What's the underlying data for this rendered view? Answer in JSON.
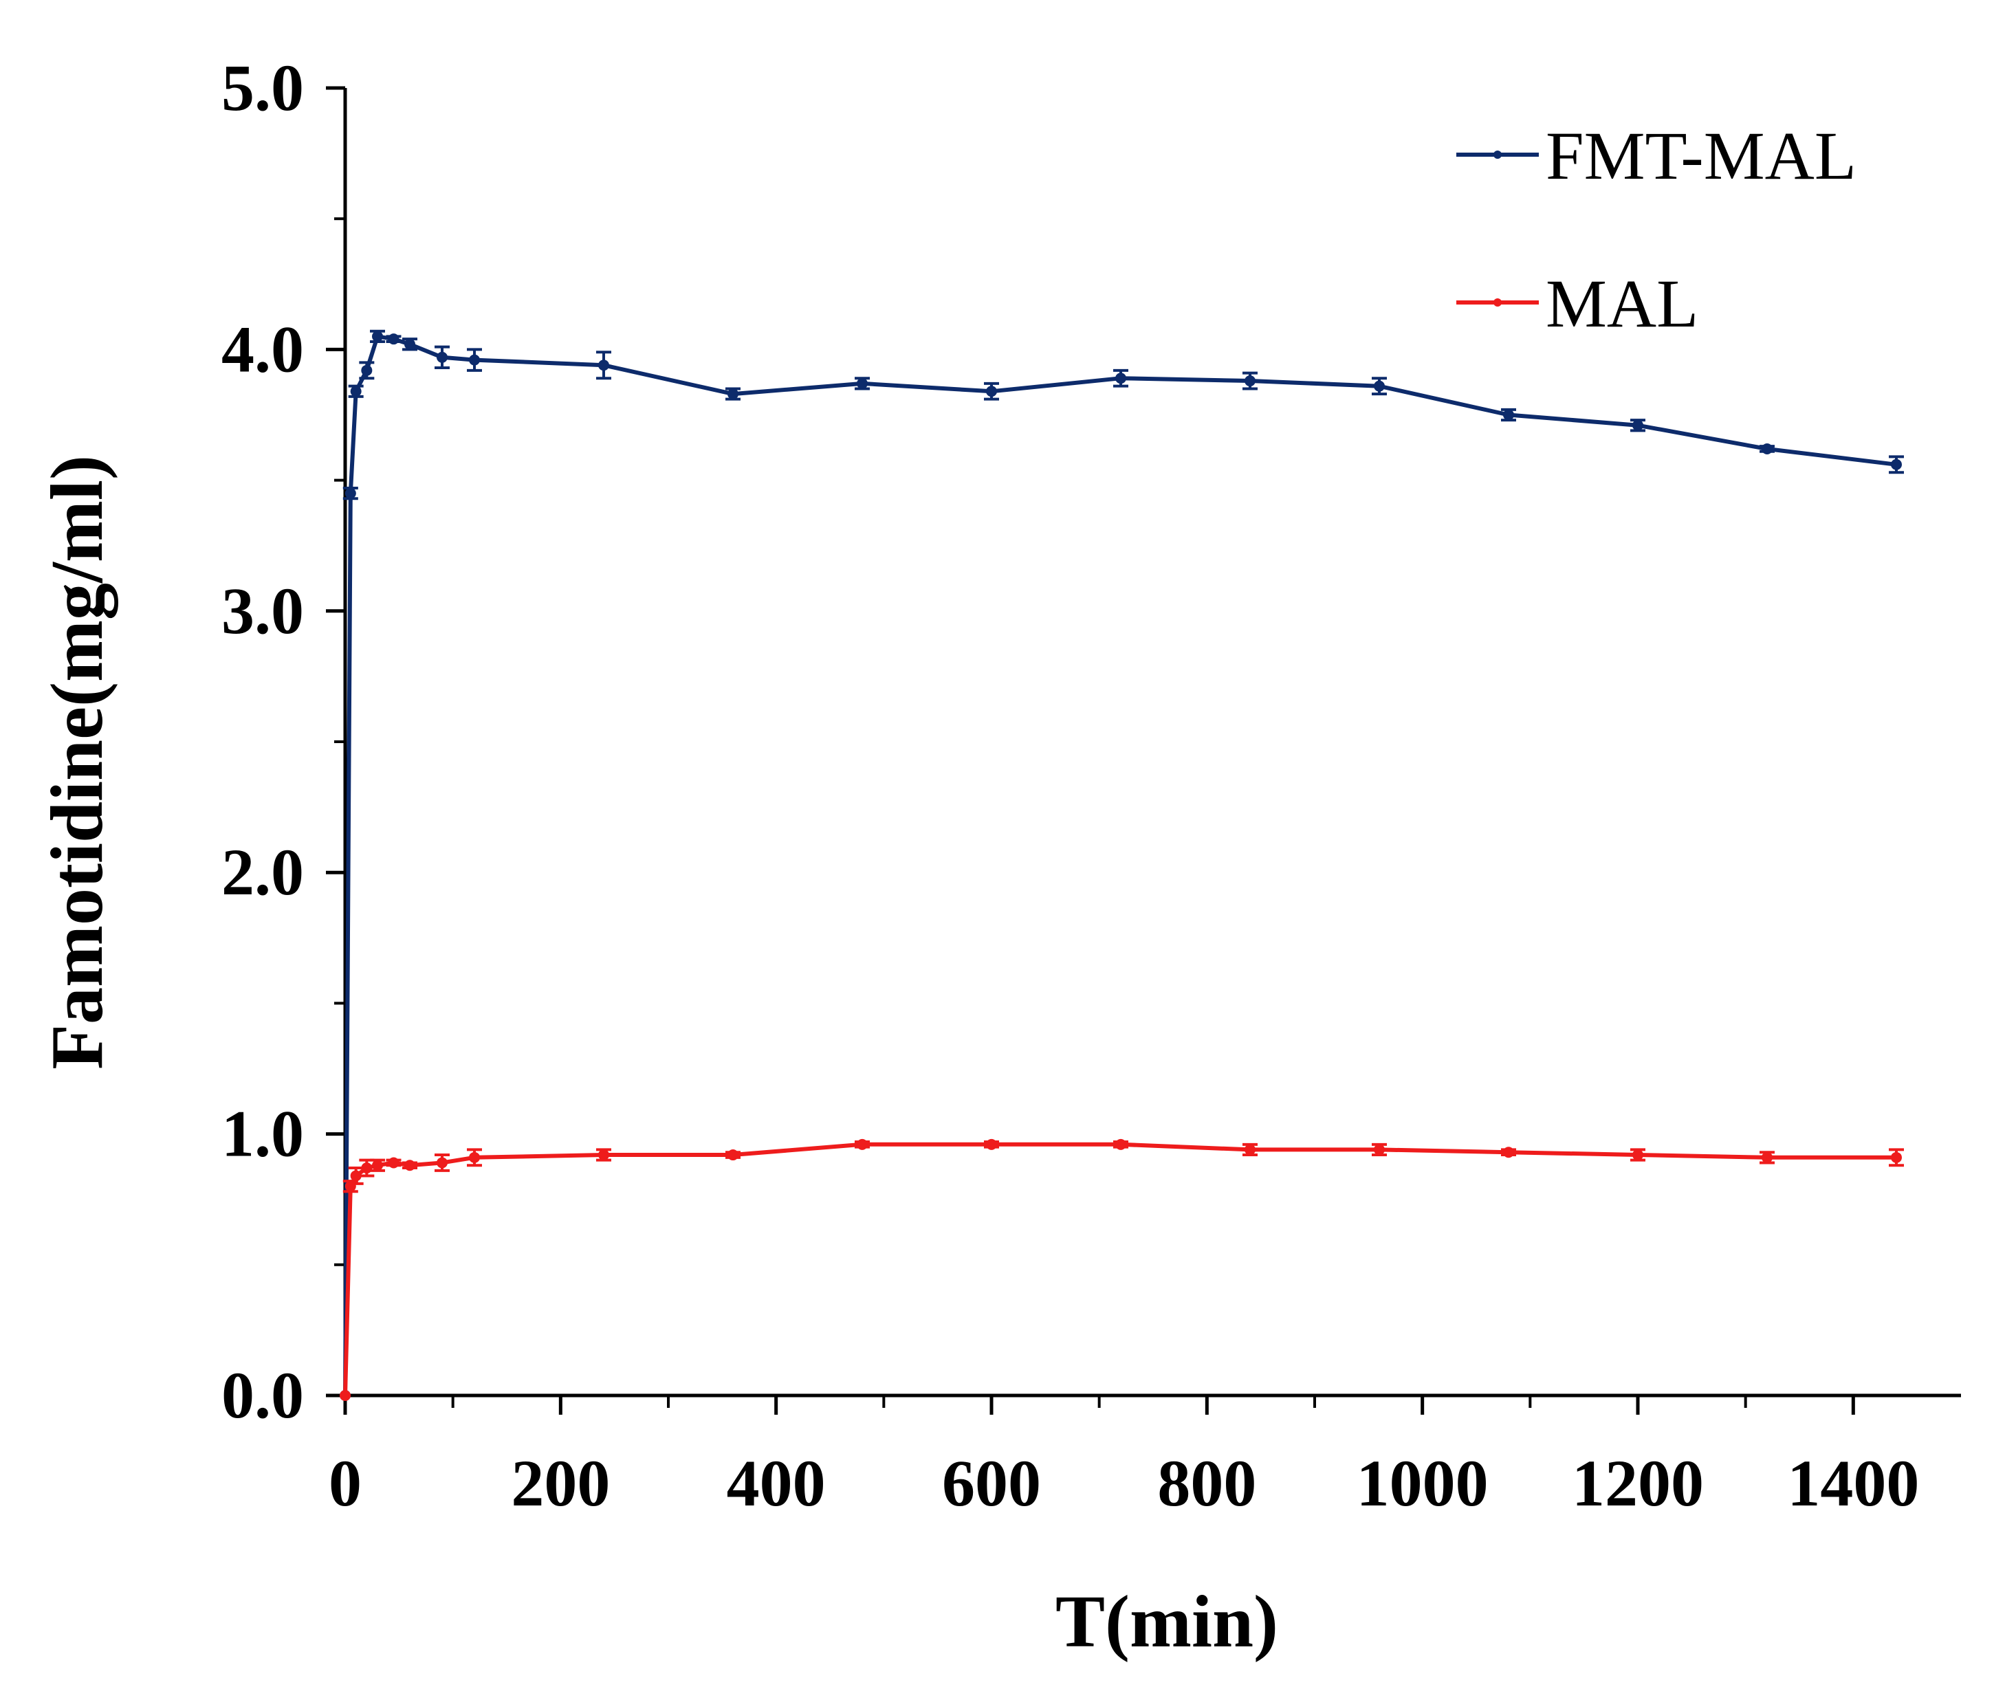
{
  "chart_data": {
    "type": "line",
    "title": "",
    "xlabel": "T(min)",
    "ylabel": "Famotidine(mg/ml)",
    "xlim": [
      0,
      1500
    ],
    "ylim": [
      0,
      5.0
    ],
    "x_ticks": [
      "0",
      "200",
      "400",
      "600",
      "800",
      "1000",
      "1200",
      "1400"
    ],
    "x_tick_values": [
      0,
      200,
      400,
      600,
      800,
      1000,
      1200,
      1400
    ],
    "y_ticks": [
      "0.0",
      "1.0",
      "2.0",
      "3.0",
      "4.0",
      "5.0"
    ],
    "y_tick_values": [
      0,
      1,
      2,
      3,
      4,
      5
    ],
    "grid": false,
    "legend_position": "top-right",
    "series": [
      {
        "name": "FMT-MAL",
        "color": "#0d2b6b",
        "x": [
          0,
          5,
          10,
          20,
          30,
          45,
          60,
          90,
          120,
          240,
          360,
          480,
          600,
          720,
          840,
          960,
          1080,
          1200,
          1320,
          1440
        ],
        "values": [
          0,
          3.45,
          3.84,
          3.92,
          4.05,
          4.04,
          4.02,
          3.97,
          3.96,
          3.94,
          3.83,
          3.87,
          3.84,
          3.89,
          3.88,
          3.86,
          3.75,
          3.71,
          3.62,
          3.56
        ],
        "errors": [
          0,
          0.02,
          0.02,
          0.03,
          0.02,
          0.01,
          0.02,
          0.04,
          0.04,
          0.05,
          0.02,
          0.02,
          0.03,
          0.03,
          0.03,
          0.03,
          0.02,
          0.02,
          0.01,
          0.03
        ]
      },
      {
        "name": "MAL",
        "color": "#ee1c1c",
        "x": [
          0,
          5,
          10,
          20,
          30,
          45,
          60,
          90,
          120,
          240,
          360,
          480,
          600,
          720,
          840,
          960,
          1080,
          1200,
          1320,
          1440
        ],
        "values": [
          0,
          0.8,
          0.84,
          0.87,
          0.88,
          0.89,
          0.88,
          0.89,
          0.91,
          0.92,
          0.92,
          0.96,
          0.96,
          0.96,
          0.94,
          0.94,
          0.93,
          0.92,
          0.91,
          0.91
        ],
        "errors": [
          0,
          0.02,
          0.03,
          0.03,
          0.02,
          0.01,
          0.01,
          0.03,
          0.03,
          0.02,
          0.01,
          0.01,
          0.01,
          0.01,
          0.02,
          0.02,
          0.01,
          0.02,
          0.02,
          0.03
        ]
      }
    ]
  }
}
